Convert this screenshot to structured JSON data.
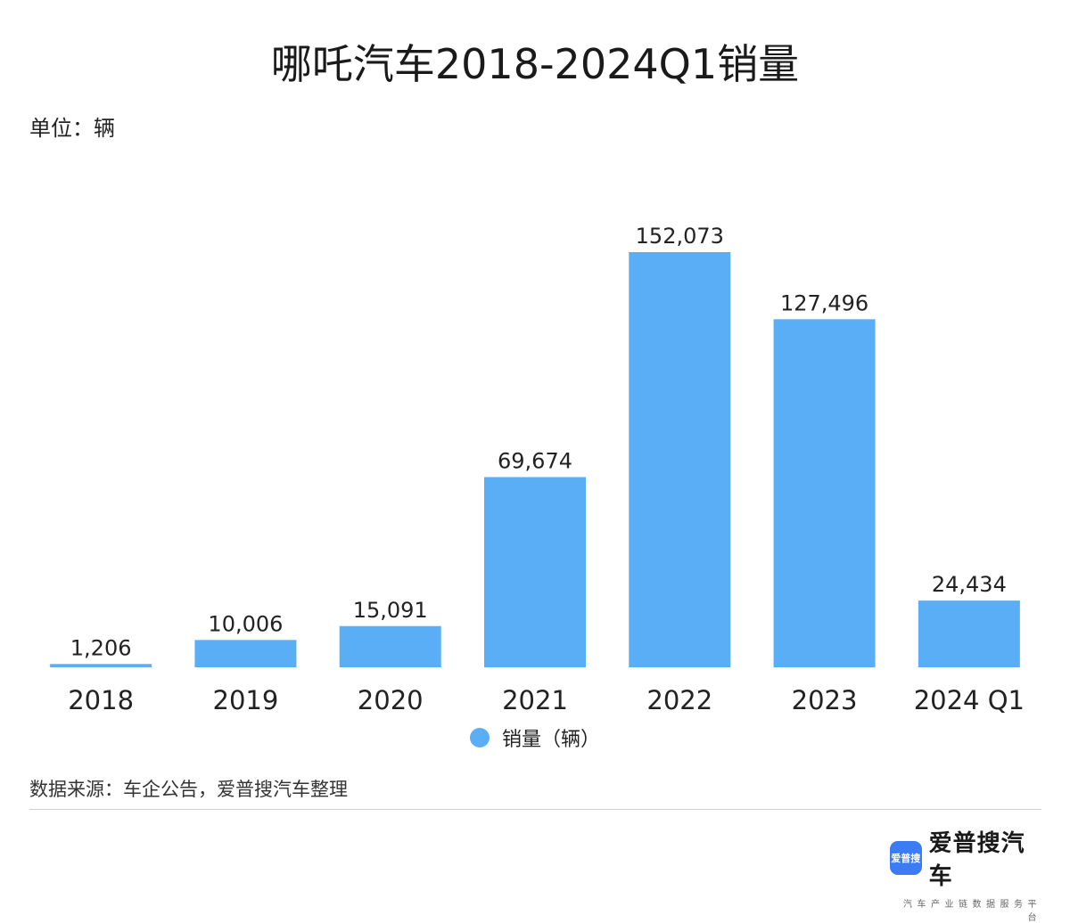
{
  "header": {
    "title": "哪吒汽车2018-2024Q1销量",
    "unit": "单位：辆"
  },
  "chart_data": {
    "type": "bar",
    "title": "哪吒汽车2018-2024Q1销量",
    "xlabel": "",
    "ylabel": "",
    "ylim": [
      0,
      160000
    ],
    "grid": false,
    "legend": "bottom-center",
    "categories": [
      "2018",
      "2019",
      "2020",
      "2021",
      "2022",
      "2023",
      "2024 Q1"
    ],
    "series": [
      {
        "name": "销量（辆）",
        "values": [
          1206,
          10006,
          15091,
          69674,
          152073,
          127496,
          24434
        ],
        "labels": [
          "1,206",
          "10,006",
          "15,091",
          "69,674",
          "152,073",
          "127,496",
          "24,434"
        ],
        "color": "#5aaef5"
      }
    ]
  },
  "footer": {
    "source": "数据来源：车企公告，爱普搜汽车整理",
    "brand_logo": "爱普搜",
    "brand_name": "爱普搜汽车",
    "brand_tagline": "汽车产业链数据服务平台",
    "brand_color": "#3b7cf5"
  }
}
